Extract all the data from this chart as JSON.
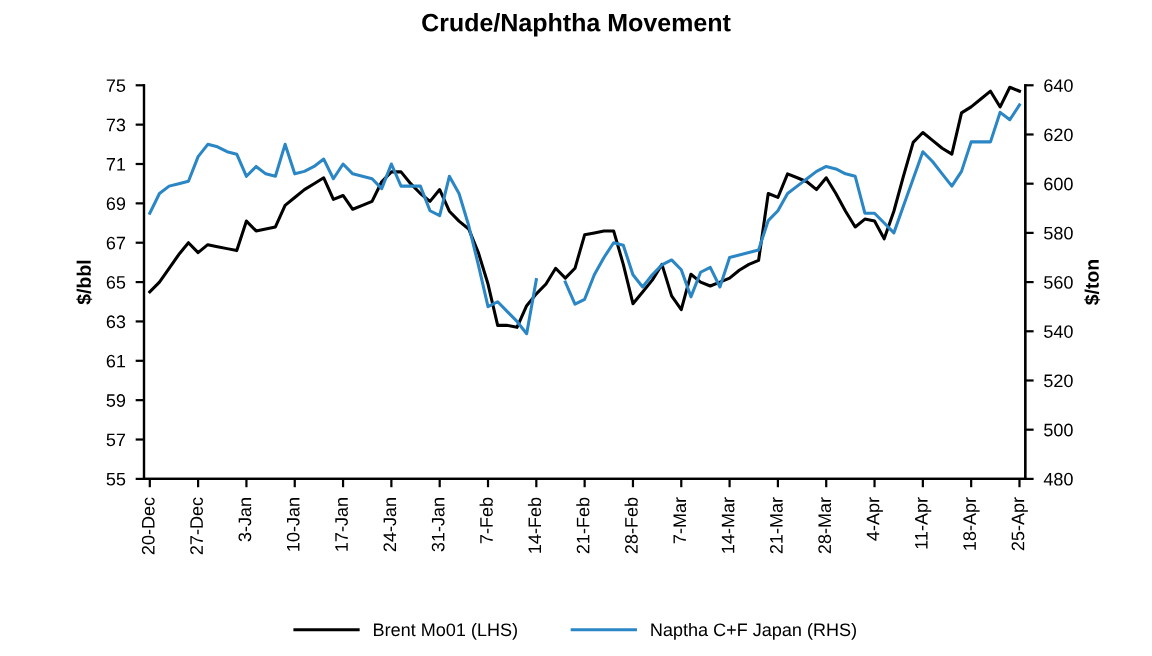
{
  "chart_data": {
    "type": "line",
    "title": "Crude/Naphtha Movement",
    "ylabel": "$/bbl",
    "y2label": "$/ton",
    "categories": [
      "20-Dec",
      null,
      null,
      null,
      null,
      "27-Dec",
      null,
      null,
      null,
      null,
      "3-Jan",
      null,
      null,
      null,
      null,
      "10-Jan",
      null,
      null,
      null,
      null,
      "17-Jan",
      null,
      null,
      null,
      null,
      "24-Jan",
      null,
      null,
      null,
      null,
      "31-Jan",
      null,
      null,
      null,
      null,
      "7-Feb",
      null,
      null,
      null,
      null,
      "14-Feb",
      null,
      null,
      null,
      null,
      "21-Feb",
      null,
      null,
      null,
      null,
      "28-Feb",
      null,
      null,
      null,
      null,
      "7-Mar",
      null,
      null,
      null,
      null,
      "14-Mar",
      null,
      null,
      null,
      null,
      "21-Mar",
      null,
      null,
      null,
      null,
      "28-Mar",
      null,
      null,
      null,
      null,
      "4-Apr",
      null,
      null,
      null,
      null,
      "11-Apr",
      null,
      null,
      null,
      null,
      "18-Apr",
      null,
      null,
      null,
      null,
      "25-Apr"
    ],
    "ylim": [
      55,
      75
    ],
    "yticks": [
      55,
      57,
      59,
      61,
      63,
      65,
      67,
      69,
      71,
      73,
      75
    ],
    "y2lim": [
      480,
      640
    ],
    "y2ticks": [
      480,
      500,
      520,
      540,
      560,
      580,
      600,
      620,
      640
    ],
    "legend": "bottom",
    "grid": false,
    "series": [
      {
        "name": "Brent Mo01 (LHS)",
        "color": "#000000",
        "values": [
          64.5,
          65.0,
          65.7,
          66.4,
          67.0,
          66.5,
          66.9,
          66.8,
          66.7,
          66.6,
          68.1,
          67.6,
          67.7,
          67.8,
          68.9,
          69.3,
          69.7,
          70.0,
          70.3,
          69.2,
          69.4,
          68.7,
          68.9,
          69.1,
          70.1,
          70.6,
          70.6,
          70.0,
          69.5,
          69.1,
          69.7,
          68.6,
          68.1,
          67.7,
          66.5,
          64.9,
          62.8,
          62.8,
          62.7,
          63.8,
          64.4,
          64.9,
          65.7,
          65.2,
          65.7,
          67.4,
          67.5,
          67.6,
          67.6,
          65.9,
          63.9,
          64.5,
          65.1,
          65.9,
          64.3,
          63.6,
          65.4,
          65.0,
          64.8,
          65.0,
          65.2,
          65.6,
          65.9,
          66.1,
          69.5,
          69.3,
          70.5,
          70.3,
          70.1,
          69.7,
          70.3,
          69.5,
          68.6,
          67.8,
          68.2,
          68.1,
          67.2,
          68.6,
          70.4,
          72.1,
          72.6,
          72.2,
          71.8,
          71.5,
          73.6,
          73.9,
          74.3,
          74.7,
          73.9,
          74.9,
          74.7
        ]
      },
      {
        "name": "Naptha C+F Japan (RHS)",
        "color": "#2a86c4",
        "axis": "y2",
        "values": [
          588,
          596,
          599,
          600,
          601,
          611,
          616,
          615,
          613,
          612,
          603,
          607,
          604,
          603,
          616,
          604,
          605,
          607,
          610,
          602,
          608,
          604,
          603,
          602,
          598,
          608,
          599,
          599,
          599,
          589,
          587,
          603,
          596,
          583,
          567,
          550,
          552,
          548,
          544,
          539,
          561,
          null,
          null,
          560,
          551,
          553,
          563,
          570,
          576,
          575,
          563,
          558,
          563,
          567,
          569,
          565,
          554,
          564,
          566,
          558,
          570,
          571,
          572,
          573,
          585,
          589,
          596,
          599,
          602,
          605,
          607,
          606,
          604,
          603,
          588,
          588,
          584,
          580,
          591,
          602,
          613,
          609,
          604,
          599,
          605,
          617,
          617,
          617,
          629,
          626,
          632
        ]
      }
    ]
  }
}
